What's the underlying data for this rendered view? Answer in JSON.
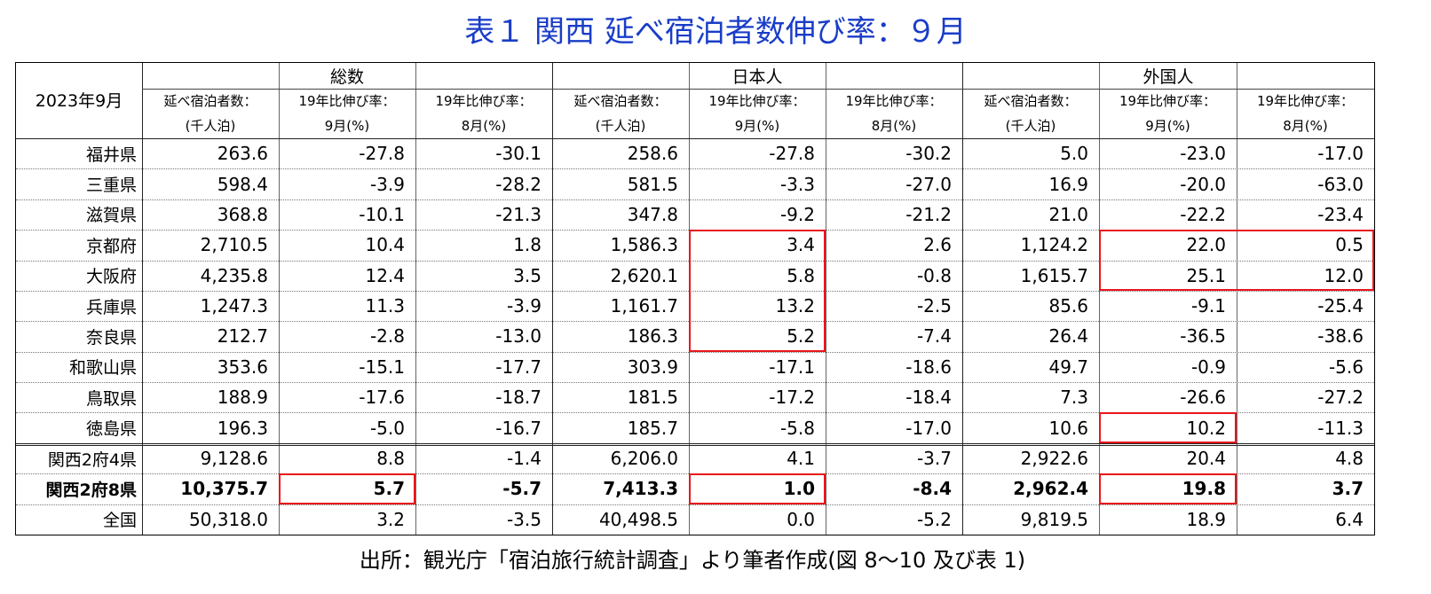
{
  "title": "表１ 関西 延べ宿泊者数伸び率：９月",
  "table": {
    "corner": "2023年9月",
    "groups": [
      "総数",
      "日本人",
      "外国人"
    ],
    "subheaders": [
      [
        "延べ宿泊者数：",
        "(千人泊)"
      ],
      [
        "19年比伸び率：",
        "9月(%)"
      ],
      [
        "19年比伸び率：",
        "8月(%)"
      ],
      [
        "延べ宿泊者数：",
        "(千人泊)"
      ],
      [
        "19年比伸び率：",
        "9月(%)"
      ],
      [
        "19年比伸び率：",
        "8月(%)"
      ],
      [
        "延べ宿泊者数：",
        "(千人泊)"
      ],
      [
        "19年比伸び率：",
        "9月(%)"
      ],
      [
        "19年比伸び率：",
        "8月(%)"
      ]
    ],
    "rows": [
      [
        "福井県",
        "263.6",
        "-27.8",
        "-30.1",
        "258.6",
        "-27.8",
        "-30.2",
        "5.0",
        "-23.0",
        "-17.0"
      ],
      [
        "三重県",
        "598.4",
        "-3.9",
        "-28.2",
        "581.5",
        "-3.3",
        "-27.0",
        "16.9",
        "-20.0",
        "-63.0"
      ],
      [
        "滋賀県",
        "368.8",
        "-10.1",
        "-21.3",
        "347.8",
        "-9.2",
        "-21.2",
        "21.0",
        "-22.2",
        "-23.4"
      ],
      [
        "京都府",
        "2,710.5",
        "10.4",
        "1.8",
        "1,586.3",
        "3.4",
        "2.6",
        "1,124.2",
        "22.0",
        "0.5"
      ],
      [
        "大阪府",
        "4,235.8",
        "12.4",
        "3.5",
        "2,620.1",
        "5.8",
        "-0.8",
        "1,615.7",
        "25.1",
        "12.0"
      ],
      [
        "兵庫県",
        "1,247.3",
        "11.3",
        "-3.9",
        "1,161.7",
        "13.2",
        "-2.5",
        "85.6",
        "-9.1",
        "-25.4"
      ],
      [
        "奈良県",
        "212.7",
        "-2.8",
        "-13.0",
        "186.3",
        "5.2",
        "-7.4",
        "26.4",
        "-36.5",
        "-38.6"
      ],
      [
        "和歌山県",
        "353.6",
        "-15.1",
        "-17.7",
        "303.9",
        "-17.1",
        "-18.6",
        "49.7",
        "-0.9",
        "-5.6"
      ],
      [
        "鳥取県",
        "188.9",
        "-17.6",
        "-18.7",
        "181.5",
        "-17.2",
        "-18.4",
        "7.3",
        "-26.6",
        "-27.2"
      ],
      [
        "徳島県",
        "196.3",
        "-5.0",
        "-16.7",
        "185.7",
        "-5.8",
        "-17.0",
        "10.6",
        "10.2",
        "-11.3"
      ],
      [
        "関西2府4県",
        "9,128.6",
        "8.8",
        "-1.4",
        "6,206.0",
        "4.1",
        "-3.7",
        "2,922.6",
        "20.4",
        "4.8"
      ],
      [
        "関西2府8県",
        "10,375.7",
        "5.7",
        "-5.7",
        "7,413.3",
        "1.0",
        "-8.4",
        "2,962.4",
        "19.8",
        "3.7"
      ],
      [
        "全国",
        "50,318.0",
        "3.2",
        "-3.5",
        "40,498.5",
        "0.0",
        "-5.2",
        "9,819.5",
        "18.9",
        "6.4"
      ]
    ]
  },
  "source": "出所：観光庁「宿泊旅行統計調査」より筆者作成(図 8～10 及び表 1)"
}
